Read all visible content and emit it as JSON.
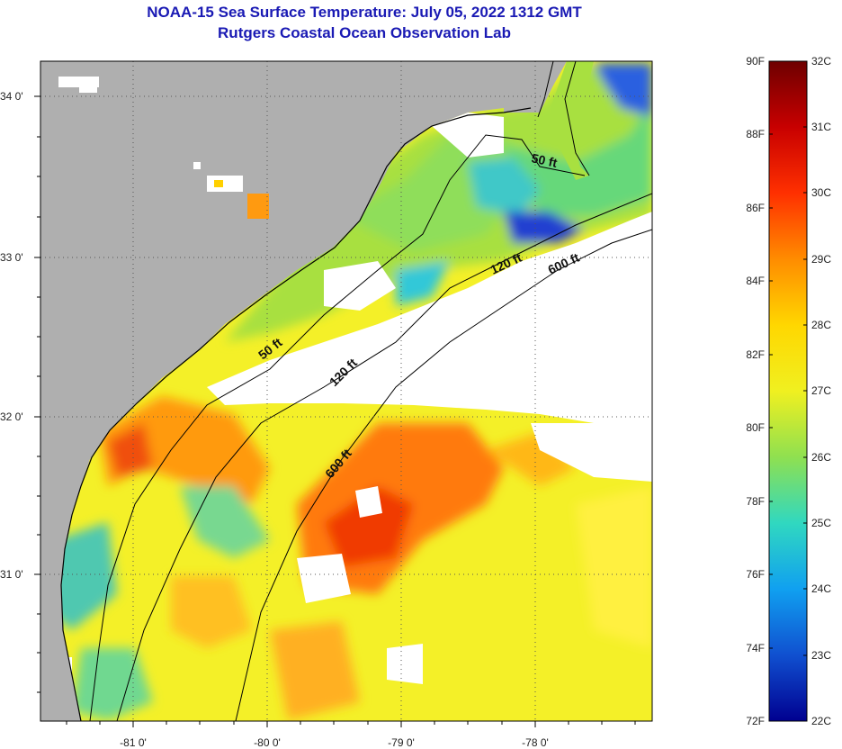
{
  "header": {
    "title": "NOAA-15 Sea Surface Temperature:  July 05, 2022 1312 GMT",
    "subtitle": "Rutgers Coastal Ocean Observation Lab"
  },
  "map": {
    "lat_labels": [
      "34 0'",
      "33 0'",
      "32 0'",
      "31 0'"
    ],
    "lon_labels": [
      "-81 0'",
      "-80 0'",
      "-79 0'",
      "-78 0'"
    ],
    "contours": [
      "50 ft",
      "50 ft",
      "120 ft",
      "120 ft",
      "600 ft",
      "600 ft"
    ],
    "colors": {
      "land": "#afafaf",
      "cloud": "#ffffff",
      "coast": "#000000"
    }
  },
  "colorbar": {
    "fahrenheit": [
      "90F",
      "88F",
      "86F",
      "84F",
      "82F",
      "80F",
      "78F",
      "76F",
      "74F",
      "72F"
    ],
    "celsius": [
      "32C",
      "31C",
      "30C",
      "29C",
      "28C",
      "27C",
      "26C",
      "25C",
      "24C",
      "23C",
      "22C"
    ],
    "stops": [
      "#6e0000",
      "#c80000",
      "#ff3000",
      "#ff8c00",
      "#ffd700",
      "#f0f020",
      "#8fe050",
      "#30d8c0",
      "#10a0f0",
      "#1050d0",
      "#000090"
    ]
  }
}
